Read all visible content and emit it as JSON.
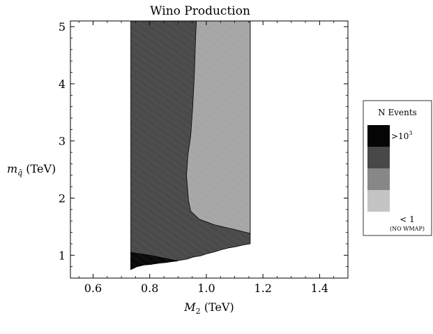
{
  "chart_data": {
    "type": "contour",
    "title": "Wino Production",
    "xlabel_main": "M",
    "xlabel_sub": "2",
    "xlabel_unit": " (TeV)",
    "ylabel_main": "m",
    "ylabel_sub": "q̃",
    "ylabel_unit": " (TeV)",
    "xlim": [
      0.52,
      1.5
    ],
    "ylim": [
      0.6,
      5.1
    ],
    "xticks": [
      {
        "value": 0.6,
        "label": "0.6"
      },
      {
        "value": 0.8,
        "label": "0.8"
      },
      {
        "value": 1.0,
        "label": "1.0"
      },
      {
        "value": 1.2,
        "label": "1.2"
      },
      {
        "value": 1.4,
        "label": "1.4"
      }
    ],
    "yticks": [
      {
        "value": 1,
        "label": "1"
      },
      {
        "value": 2,
        "label": "2"
      },
      {
        "value": 3,
        "label": "3"
      },
      {
        "value": 4,
        "label": "4"
      },
      {
        "value": 5,
        "label": "5"
      }
    ],
    "regions": [
      {
        "level": "dark",
        "color": "#4a4a4a",
        "points": [
          [
            0.733,
            5.1
          ],
          [
            1.155,
            5.1
          ],
          [
            1.155,
            1.2
          ],
          [
            1.13,
            1.18
          ],
          [
            1.105,
            1.15
          ],
          [
            1.08,
            1.13
          ],
          [
            1.055,
            1.1
          ],
          [
            1.03,
            1.06
          ],
          [
            1.005,
            1.03
          ],
          [
            0.98,
            0.99
          ],
          [
            0.955,
            0.97
          ],
          [
            0.93,
            0.93
          ],
          [
            0.905,
            0.91
          ],
          [
            0.88,
            0.9
          ],
          [
            0.855,
            0.88
          ],
          [
            0.83,
            0.86
          ],
          [
            0.805,
            0.84
          ],
          [
            0.78,
            0.83
          ],
          [
            0.755,
            0.8
          ],
          [
            0.733,
            0.75
          ]
        ]
      },
      {
        "level": "light",
        "color": "#a6a6a6",
        "points": [
          [
            0.965,
            5.1
          ],
          [
            1.155,
            5.1
          ],
          [
            1.155,
            1.38
          ],
          [
            1.1,
            1.45
          ],
          [
            1.03,
            1.53
          ],
          [
            0.975,
            1.63
          ],
          [
            0.945,
            1.77
          ],
          [
            0.937,
            1.95
          ],
          [
            0.934,
            2.15
          ],
          [
            0.93,
            2.4
          ],
          [
            0.935,
            2.75
          ],
          [
            0.945,
            3.1
          ],
          [
            0.952,
            3.6
          ],
          [
            0.958,
            4.2
          ],
          [
            0.962,
            4.8
          ]
        ]
      },
      {
        "level": "black",
        "color": "#0a0a0a",
        "points": [
          [
            0.733,
            1.05
          ],
          [
            0.8,
            1.0
          ],
          [
            0.87,
            0.93
          ],
          [
            0.9,
            0.9
          ],
          [
            0.88,
            0.89
          ],
          [
            0.855,
            0.87
          ],
          [
            0.83,
            0.86
          ],
          [
            0.805,
            0.84
          ],
          [
            0.78,
            0.83
          ],
          [
            0.755,
            0.8
          ],
          [
            0.733,
            0.75
          ]
        ]
      }
    ],
    "legend": {
      "title": "N Events",
      "top_label": ">10",
      "top_label_sup": "3",
      "bottom_label": "< 1",
      "bottom_note": "(NO WMAP)",
      "swatches": [
        "#050505",
        "#484848",
        "#878787",
        "#c4c4c4"
      ],
      "placement": "right"
    }
  }
}
